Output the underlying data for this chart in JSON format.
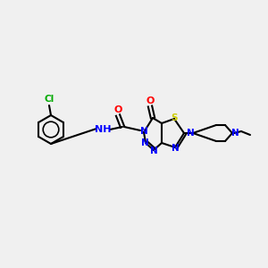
{
  "bg_color": "#f0f0f0",
  "bond_color": "#000000",
  "bond_width": 1.5,
  "atom_colors": {
    "C": "#000000",
    "N": "#0000ff",
    "O": "#ff0000",
    "S": "#cccc00",
    "Cl": "#00aa00",
    "H": "#000000"
  }
}
